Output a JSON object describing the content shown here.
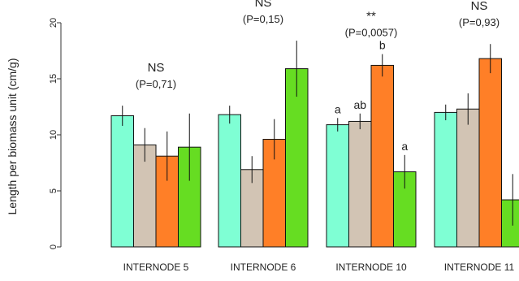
{
  "chart_data": {
    "type": "bar",
    "title": "",
    "xlabel": "",
    "ylabel": "Length per biomass unit (cm/g)",
    "ylim": [
      0,
      20
    ],
    "yticks": [
      0,
      5,
      10,
      15,
      20
    ],
    "grid": false,
    "legend": "none",
    "colors": [
      "#7fffd4",
      "#d2c4b4",
      "#ff7f27",
      "#66dd22"
    ],
    "categories": [
      "INTERNODE 5",
      "INTERNODE 6",
      "INTERNODE 10",
      "INTERNODE 11"
    ],
    "series": [
      {
        "values": [
          11.7,
          11.8,
          10.9,
          12.0
        ],
        "errors": [
          0.9,
          0.8,
          0.6,
          0.7
        ]
      },
      {
        "values": [
          9.1,
          6.9,
          11.2,
          12.3
        ],
        "errors": [
          1.5,
          1.2,
          0.7,
          1.4
        ]
      },
      {
        "values": [
          8.1,
          9.6,
          16.2,
          16.8
        ],
        "errors": [
          2.2,
          1.8,
          1.0,
          1.3
        ]
      },
      {
        "values": [
          8.9,
          15.9,
          6.7,
          4.2
        ],
        "errors": [
          3.0,
          2.5,
          1.5,
          2.3
        ]
      }
    ],
    "annotations": [
      {
        "significance": "NS",
        "p_value": "(P=0,71)",
        "letters": [
          "",
          "",
          "",
          ""
        ]
      },
      {
        "significance": "NS",
        "p_value": "(P=0,15)",
        "letters": [
          "",
          "",
          "",
          ""
        ]
      },
      {
        "significance": "**",
        "p_value": "(P=0,0057)",
        "letters": [
          "a",
          "ab",
          "b",
          "a"
        ]
      },
      {
        "significance": "NS",
        "p_value": "(P=0,93)",
        "letters": [
          "",
          "",
          "",
          ""
        ]
      }
    ]
  }
}
